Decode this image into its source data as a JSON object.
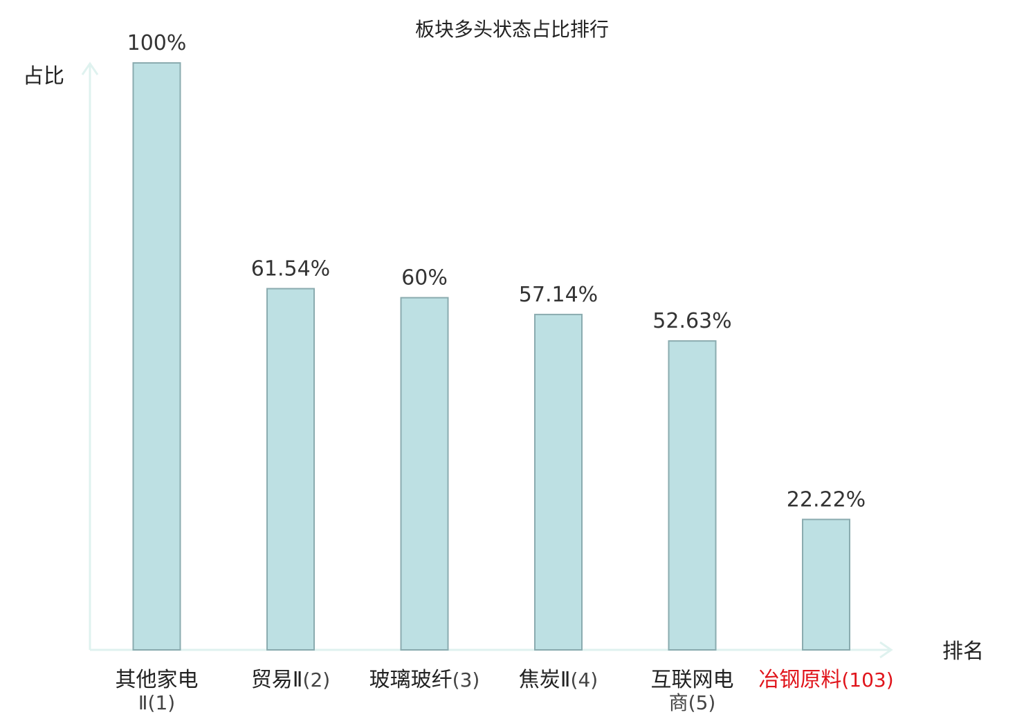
{
  "chart_data": {
    "type": "bar",
    "title": "板块多头状态占比排行",
    "ylabel": "占比",
    "xlabel": "排名",
    "ylim": [
      0,
      100
    ],
    "grid": false,
    "categories": [
      {
        "name_lines": [
          "其他家电"
        ],
        "rank_line": "Ⅱ(1)",
        "highlight": false
      },
      {
        "name_lines": [
          "贸易Ⅱ"
        ],
        "rank_line": "(2)",
        "highlight": false
      },
      {
        "name_lines": [
          "玻璃玻纤"
        ],
        "rank_line": "(3)",
        "highlight": false
      },
      {
        "name_lines": [
          "焦炭Ⅱ"
        ],
        "rank_line": "(4)",
        "highlight": false
      },
      {
        "name_lines": [
          "互联网电"
        ],
        "rank_line": "商(5)",
        "highlight": false
      },
      {
        "name_lines": [
          "冶钢原料"
        ],
        "rank_line": "(103)",
        "highlight": true
      }
    ],
    "values": [
      100,
      61.54,
      60,
      57.14,
      52.63,
      22.22
    ],
    "value_labels": [
      "100%",
      "61.54%",
      "60%",
      "57.14%",
      "52.63%",
      "22.22%"
    ],
    "colors": {
      "bar_fill": "#bde0e3",
      "bar_stroke": "#8aabaf",
      "axis": "#dff2ef",
      "text": "#222222",
      "rank_text": "#444444",
      "highlight": "#e0141b"
    }
  }
}
